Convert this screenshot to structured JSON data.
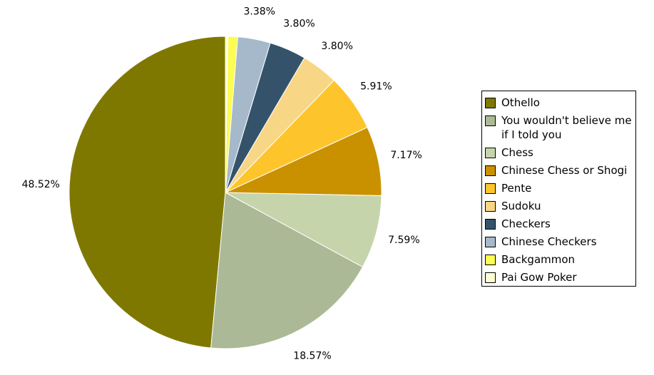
{
  "chart_data": {
    "type": "pie",
    "title": "",
    "legend_position": "right",
    "slices": [
      {
        "name": "Othello",
        "value": 48.52,
        "label": "48.52%",
        "color": "#7f7800"
      },
      {
        "name": "You wouldn't believe me if I told you",
        "value": 18.57,
        "label": "18.57%",
        "color": "#abb996"
      },
      {
        "name": "Chess",
        "value": 7.59,
        "label": "7.59%",
        "color": "#c6d4ab"
      },
      {
        "name": "Chinese Chess or Shogi",
        "value": 7.17,
        "label": "7.17%",
        "color": "#c99100"
      },
      {
        "name": "Pente",
        "value": 5.91,
        "label": "5.91%",
        "color": "#fdc52b"
      },
      {
        "name": "Sudoku",
        "value": 3.8,
        "label": "3.80%",
        "color": "#f7d786"
      },
      {
        "name": "Checkers",
        "value": 3.8,
        "label": "3.80%",
        "color": "#34536b"
      },
      {
        "name": "Chinese Checkers",
        "value": 3.38,
        "label": "3.38%",
        "color": "#a6b9cb"
      },
      {
        "name": "Backgammon",
        "value": 1.0,
        "label": "",
        "color": "#fcfc52"
      },
      {
        "name": "Pai Gow Poker",
        "value": 0.26,
        "label": "",
        "color": "#fefed0"
      }
    ]
  }
}
